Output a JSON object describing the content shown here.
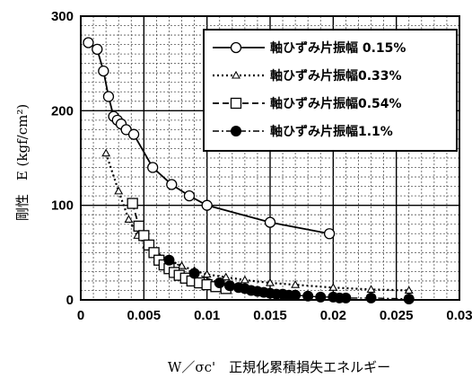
{
  "chart_data": {
    "type": "scatter",
    "title": "",
    "xlabel": "W／σc'　正規化累積損失エネルギー",
    "ylabel": "剛性　E (kgf/cm²)",
    "xlim": [
      0,
      0.03
    ],
    "ylim": [
      0,
      300
    ],
    "x_ticks": [
      "0",
      "0.005",
      "0.01",
      "0.015",
      "0.02",
      "0.025",
      "0.03"
    ],
    "y_ticks": [
      "0",
      "100",
      "200",
      "300"
    ],
    "grid": true,
    "legend_position": "top-right",
    "series": [
      {
        "name": "軸ひずみ片振幅 0.15%",
        "marker": "open-circle",
        "line": "solid",
        "x": [
          0.0006,
          0.0013,
          0.0018,
          0.0022,
          0.0026,
          0.0029,
          0.0032,
          0.0036,
          0.0042,
          0.0057,
          0.0072,
          0.0086,
          0.01,
          0.015,
          0.0197
        ],
        "y": [
          272,
          265,
          242,
          215,
          194,
          190,
          186,
          180,
          175,
          140,
          122,
          110,
          100,
          82,
          70
        ]
      },
      {
        "name": "軸ひずみ片振幅0.33%",
        "marker": "open-triangle",
        "line": "dotted",
        "x": [
          0.002,
          0.003,
          0.0038,
          0.0045,
          0.0052,
          0.006,
          0.007,
          0.008,
          0.009,
          0.01,
          0.0115,
          0.013,
          0.015,
          0.017,
          0.02,
          0.023,
          0.026
        ],
        "y": [
          155,
          115,
          85,
          68,
          58,
          50,
          42,
          36,
          31,
          27,
          24,
          21,
          18,
          16,
          13,
          11,
          10
        ]
      },
      {
        "name": "軸ひずみ片振幅0.54%",
        "marker": "open-square",
        "line": "dashed",
        "x": [
          0.0041,
          0.0046,
          0.005,
          0.0054,
          0.0058,
          0.0062,
          0.0066,
          0.007,
          0.0074,
          0.0078,
          0.0083,
          0.0088,
          0.0094,
          0.01,
          0.0107,
          0.0115
        ],
        "y": [
          102,
          78,
          68,
          58,
          50,
          42,
          37,
          33,
          29,
          26,
          23,
          20,
          18,
          16,
          14,
          12
        ]
      },
      {
        "name": "軸ひずみ片振幅1.1%",
        "marker": "filled-circle",
        "line": "dash-dot",
        "x": [
          0.007,
          0.009,
          0.011,
          0.0118,
          0.0125,
          0.013,
          0.0135,
          0.014,
          0.0145,
          0.015,
          0.0155,
          0.016,
          0.0165,
          0.017,
          0.018,
          0.019,
          0.02,
          0.0205,
          0.021,
          0.023,
          0.026
        ],
        "y": [
          42,
          28,
          18,
          15,
          13,
          12,
          10,
          9,
          8,
          7,
          6,
          6,
          5,
          5,
          4,
          3,
          3,
          2,
          2,
          2,
          1
        ]
      }
    ]
  }
}
